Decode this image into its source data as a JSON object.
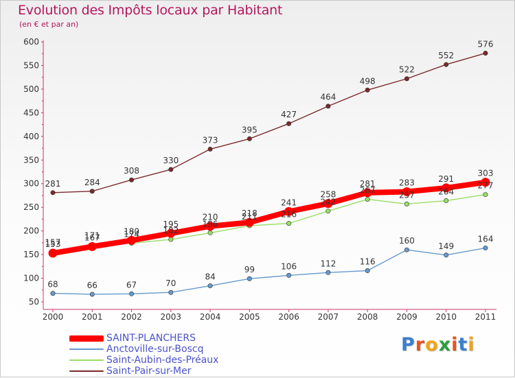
{
  "header": {
    "title": "Evolution des Impôts locaux par Habitant",
    "subtitle": "(en € et par an)"
  },
  "logo": {
    "text": "Proxiti",
    "letters": [
      "P",
      "r",
      "o",
      "x",
      "i",
      "t",
      "i"
    ],
    "colors": [
      "#3a7fd0",
      "#e8541b",
      "#f2a31a",
      "#2e9f3e",
      "#e8541b",
      "#3a7fd0",
      "#f2a31a"
    ]
  },
  "chart_data": {
    "type": "line",
    "title": "Evolution des Impôts locaux par Habitant",
    "subtitle": "(en € et par an)",
    "xlabel": "",
    "ylabel": "",
    "x": [
      "2000",
      "2001",
      "2002",
      "2003",
      "2004",
      "2005",
      "2006",
      "2007",
      "2008",
      "2009",
      "2010",
      "2011"
    ],
    "ylim": [
      50,
      600
    ],
    "yticks": [
      50,
      100,
      150,
      200,
      250,
      300,
      350,
      400,
      450,
      500,
      550,
      600
    ],
    "grid": false,
    "legend_position": "bottom-left",
    "series": [
      {
        "name": "SAINT-PLANCHERS",
        "color": "#ff0000",
        "emphasis": true,
        "values": [
          153,
          167,
          180,
          195,
          210,
          218,
          241,
          258,
          281,
          283,
          291,
          303
        ],
        "labels": [
          "153",
          "167",
          "180",
          "195",
          "210",
          "218",
          "241",
          "258",
          "281",
          "283",
          "291",
          "303"
        ]
      },
      {
        "name": "Anctoville-sur-Boscq",
        "color": "#6699cc",
        "emphasis": false,
        "values": [
          68,
          66,
          67,
          70,
          84,
          99,
          106,
          112,
          116,
          160,
          149,
          164
        ],
        "labels": [
          "68",
          "66",
          "67",
          "70",
          "84",
          "99",
          "106",
          "112",
          "116",
          "160",
          "149",
          "164"
        ]
      },
      {
        "name": "Saint-Aubin-des-Préaux",
        "color": "#99dd66",
        "emphasis": false,
        "values": [
          157,
          171,
          174,
          182,
          196,
          211,
          216,
          242,
          267,
          257,
          264,
          277
        ],
        "labels": [
          "157",
          "171",
          "174",
          "182",
          "196",
          "211",
          "216",
          "242",
          "267",
          "257",
          "264",
          "277"
        ]
      },
      {
        "name": "Saint-Pair-sur-Mer",
        "color": "#7a2a2a",
        "emphasis": false,
        "values": [
          281,
          284,
          308,
          330,
          373,
          395,
          427,
          464,
          498,
          522,
          552,
          576
        ],
        "labels": [
          "281",
          "284",
          "308",
          "330",
          "373",
          "395",
          "427",
          "464",
          "498",
          "522",
          "552",
          "576"
        ]
      }
    ]
  }
}
